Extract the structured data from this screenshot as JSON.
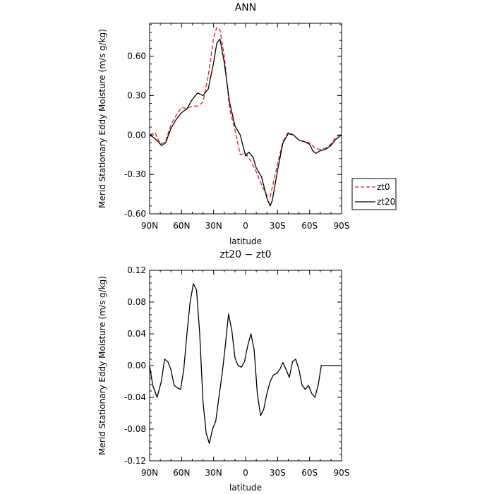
{
  "chart_data": [
    {
      "type": "line",
      "title": "ANN",
      "xlabel": "latitude",
      "ylabel": "Merid Stationary Eddy Moisture (m/s g/kg)",
      "xlim": [
        90,
        -90
      ],
      "ylim": [
        -0.6,
        0.85
      ],
      "x_ticks": [
        90,
        60,
        30,
        0,
        -30,
        -60,
        -90
      ],
      "x_tick_labels": [
        "90N",
        "60N",
        "30N",
        "0",
        "30S",
        "60S",
        "90S"
      ],
      "y_ticks": [
        -0.6,
        -0.3,
        0.0,
        0.3,
        0.6
      ],
      "y_tick_labels": [
        "-0.60",
        "-0.30",
        "0.00",
        "0.30",
        "0.60"
      ],
      "grid": false,
      "legend_position": "right, outside plot",
      "series": [
        {
          "name": "zt0",
          "style": "dashed",
          "color": "#e41a1c",
          "x": [
            90,
            85,
            80,
            75,
            70,
            65,
            60,
            55,
            50,
            45,
            40,
            35,
            30,
            27,
            24,
            20,
            15,
            10,
            5,
            0,
            -5,
            -10,
            -15,
            -20,
            -23,
            -25,
            -30,
            -35,
            -40,
            -45,
            -50,
            -55,
            -60,
            -65,
            -70,
            -75,
            -80,
            -85,
            -90
          ],
          "values": [
            0.0,
            0.02,
            -0.07,
            -0.05,
            0.08,
            0.15,
            0.21,
            0.2,
            0.22,
            0.22,
            0.25,
            0.45,
            0.74,
            0.82,
            0.8,
            0.6,
            0.2,
            0.04,
            -0.15,
            -0.14,
            -0.2,
            -0.28,
            -0.38,
            -0.46,
            -0.47,
            -0.4,
            -0.22,
            -0.05,
            0.02,
            0.0,
            -0.04,
            -0.05,
            -0.06,
            -0.1,
            -0.11,
            -0.1,
            -0.07,
            -0.01,
            0.0
          ]
        },
        {
          "name": "zt20",
          "style": "solid",
          "color": "#000000",
          "x": [
            90,
            86,
            82,
            79,
            75,
            70,
            65,
            60,
            55,
            50,
            45,
            40,
            35,
            30,
            27,
            24,
            20,
            15,
            10,
            5,
            0,
            -3,
            -7,
            -10,
            -15,
            -20,
            -23,
            -25,
            -30,
            -35,
            -40,
            -45,
            -50,
            -55,
            -60,
            -63,
            -66,
            -70,
            -75,
            -80,
            -85,
            -90
          ],
          "values": [
            0.0,
            -0.02,
            -0.05,
            -0.08,
            -0.06,
            0.05,
            0.12,
            0.17,
            0.2,
            0.27,
            0.32,
            0.3,
            0.35,
            0.55,
            0.7,
            0.73,
            0.55,
            0.25,
            0.07,
            0.0,
            -0.16,
            -0.13,
            -0.17,
            -0.25,
            -0.32,
            -0.48,
            -0.54,
            -0.5,
            -0.27,
            -0.06,
            0.01,
            0.0,
            -0.04,
            -0.05,
            -0.07,
            -0.12,
            -0.14,
            -0.12,
            -0.11,
            -0.08,
            -0.03,
            0.0
          ]
        }
      ]
    },
    {
      "type": "line",
      "title": "zt20 − zt0",
      "xlabel": "latitude",
      "ylabel": "Merid Stationary Eddy Moisture (m/s g/kg)",
      "xlim": [
        90,
        -90
      ],
      "ylim": [
        -0.12,
        0.12
      ],
      "x_ticks": [
        90,
        60,
        30,
        0,
        -30,
        -60,
        -90
      ],
      "x_tick_labels": [
        "90N",
        "60N",
        "30N",
        "0",
        "30S",
        "60S",
        "90S"
      ],
      "y_ticks": [
        -0.12,
        -0.08,
        -0.04,
        0.0,
        0.04,
        0.08,
        0.12
      ],
      "y_tick_labels": [
        "-0.12",
        "-0.08",
        "-0.04",
        "0.00",
        "0.04",
        "0.08",
        "0.12"
      ],
      "grid": false,
      "series": [
        {
          "style": "solid",
          "color": "#000000",
          "x": [
            90,
            87,
            83,
            79,
            76,
            73,
            70,
            67,
            64,
            61,
            58,
            55,
            52,
            49,
            46,
            43,
            40,
            37,
            34,
            31,
            28,
            25,
            22,
            19,
            16,
            13,
            10,
            7,
            4,
            1,
            -2,
            -5,
            -8,
            -11,
            -14,
            -17,
            -20,
            -23,
            -26,
            -29,
            -32,
            -35,
            -38,
            -41,
            -44,
            -47,
            -50,
            -53,
            -56,
            -59,
            -62,
            -65,
            -68,
            -71,
            -74,
            -77,
            -80,
            -83,
            -86,
            -90
          ],
          "values": [
            0.0,
            -0.025,
            -0.04,
            -0.02,
            0.008,
            0.005,
            -0.005,
            -0.025,
            -0.028,
            -0.03,
            -0.005,
            0.04,
            0.08,
            0.103,
            0.095,
            0.04,
            -0.045,
            -0.085,
            -0.098,
            -0.08,
            -0.07,
            -0.04,
            -0.01,
            0.025,
            0.065,
            0.045,
            0.01,
            0.0,
            -0.002,
            0.005,
            0.025,
            0.04,
            0.02,
            -0.035,
            -0.063,
            -0.055,
            -0.035,
            -0.02,
            -0.012,
            -0.01,
            -0.005,
            0.004,
            -0.005,
            -0.015,
            0.005,
            0.008,
            -0.005,
            -0.025,
            -0.03,
            -0.025,
            -0.035,
            -0.04,
            -0.025,
            0.0,
            0.0,
            0.0,
            0.0,
            0.0,
            0.0,
            0.0
          ]
        }
      ]
    }
  ]
}
